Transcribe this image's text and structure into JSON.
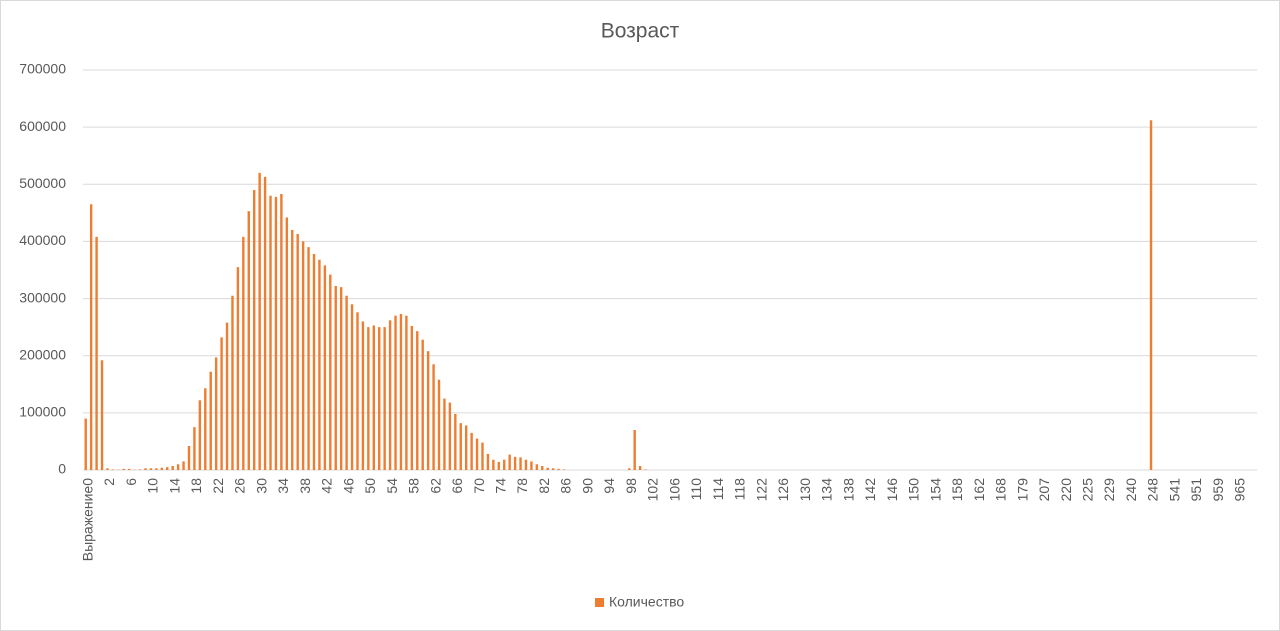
{
  "chart_data": {
    "type": "bar",
    "title": "Возраст",
    "color": "#ED7D31",
    "legend": {
      "name": "Количество",
      "position": "bottom"
    },
    "grid": true,
    "ylim": [
      0,
      700000
    ],
    "yticks": [
      0,
      100000,
      200000,
      300000,
      400000,
      500000,
      600000,
      700000
    ],
    "categories": [
      "Выражение0",
      null,
      null,
      null,
      "2",
      null,
      null,
      null,
      "6",
      null,
      null,
      null,
      "10",
      null,
      null,
      null,
      "14",
      null,
      null,
      null,
      "18",
      null,
      null,
      null,
      "22",
      null,
      null,
      null,
      "26",
      null,
      null,
      null,
      "30",
      null,
      null,
      null,
      "34",
      null,
      null,
      null,
      "38",
      null,
      null,
      null,
      "42",
      null,
      null,
      null,
      "46",
      null,
      null,
      null,
      "50",
      null,
      null,
      null,
      "54",
      null,
      null,
      null,
      "58",
      null,
      null,
      null,
      "62",
      null,
      null,
      null,
      "66",
      null,
      null,
      null,
      "70",
      null,
      null,
      null,
      "74",
      null,
      null,
      null,
      "78",
      null,
      null,
      null,
      "82",
      null,
      null,
      null,
      "86",
      null,
      null,
      null,
      "90",
      null,
      null,
      null,
      "94",
      null,
      null,
      null,
      "98",
      null,
      null,
      null,
      "102",
      null,
      null,
      null,
      "106",
      null,
      null,
      null,
      "110",
      null,
      null,
      null,
      "114",
      null,
      null,
      null,
      "118",
      null,
      null,
      null,
      "122",
      null,
      null,
      null,
      "126",
      null,
      null,
      null,
      "130",
      null,
      null,
      null,
      "134",
      null,
      null,
      null,
      "138",
      null,
      null,
      null,
      "142",
      null,
      null,
      null,
      "146",
      null,
      null,
      null,
      "150",
      null,
      null,
      null,
      "154",
      null,
      null,
      null,
      "158",
      null,
      null,
      null,
      "162",
      null,
      null,
      null,
      "168",
      null,
      null,
      null,
      "179",
      null,
      null,
      null,
      "207",
      null,
      null,
      null,
      "220",
      null,
      null,
      null,
      "225",
      null,
      null,
      null,
      "229",
      null,
      null,
      null,
      "240",
      null,
      null,
      null,
      "248",
      null,
      null,
      null,
      "541",
      null,
      null,
      null,
      "951",
      null,
      null,
      null,
      "959",
      null,
      null,
      null,
      "965",
      null,
      null,
      null
    ],
    "values": [
      90000,
      465000,
      408000,
      192000,
      3000,
      1000,
      500,
      2000,
      2000,
      500,
      1000,
      3000,
      3000,
      3000,
      4000,
      5000,
      7000,
      10000,
      15000,
      42000,
      75000,
      122000,
      143000,
      172000,
      197000,
      232000,
      258000,
      305000,
      355000,
      408000,
      453000,
      490000,
      520000,
      513000,
      480000,
      478000,
      483000,
      442000,
      420000,
      413000,
      400000,
      390000,
      378000,
      368000,
      358000,
      342000,
      322000,
      320000,
      305000,
      290000,
      276000,
      260000,
      250000,
      253000,
      250000,
      250000,
      262000,
      270000,
      273000,
      270000,
      252000,
      243000,
      228000,
      208000,
      185000,
      158000,
      125000,
      118000,
      98000,
      82000,
      78000,
      65000,
      55000,
      48000,
      28000,
      18000,
      14000,
      18000,
      27000,
      23000,
      22000,
      18000,
      15000,
      10000,
      7000,
      4000,
      3000,
      2000,
      1000,
      0,
      0,
      0,
      0,
      0,
      0,
      0,
      0,
      0,
      0,
      0,
      3000,
      70000,
      7000,
      1000,
      0,
      0,
      0,
      0,
      0,
      0,
      0,
      0,
      0,
      0,
      0,
      0,
      0,
      0,
      0,
      0,
      0,
      0,
      0,
      0,
      0,
      0,
      0,
      0,
      0,
      0,
      0,
      0,
      0,
      0,
      0,
      0,
      0,
      0,
      0,
      0,
      0,
      0,
      0,
      0,
      0,
      0,
      0,
      0,
      0,
      0,
      0,
      0,
      0,
      0,
      0,
      0,
      0,
      0,
      0,
      0,
      0,
      0,
      0,
      0,
      0,
      0,
      0,
      0,
      0,
      0,
      0,
      0,
      0,
      0,
      0,
      0,
      0,
      0,
      0,
      0,
      0,
      0,
      0,
      0,
      0,
      0,
      0,
      0,
      0,
      0,
      0,
      0,
      0,
      0,
      0,
      0,
      612000,
      0,
      0,
      0,
      0,
      0,
      0,
      0,
      0,
      0,
      0,
      0,
      0,
      0,
      0,
      0,
      0,
      0,
      0,
      0
    ]
  }
}
